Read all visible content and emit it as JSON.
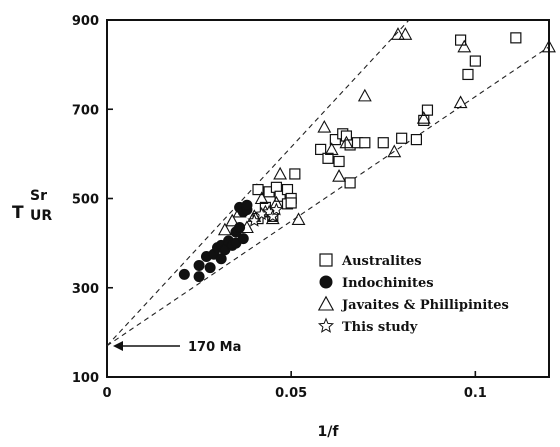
{
  "chart_data": {
    "type": "scatter",
    "title": "",
    "xlabel": "1/f",
    "ylabel": {
      "base": "T",
      "sup": "Sr",
      "sub": "UR"
    },
    "xlim": [
      0,
      0.12
    ],
    "ylim": [
      100,
      900
    ],
    "xticks": [
      0,
      0.05,
      0.1
    ],
    "xtick_labels": [
      "0",
      "0.05",
      "0.1"
    ],
    "yticks": [
      100,
      300,
      500,
      700,
      900
    ],
    "ytick_labels": [
      "100",
      "300",
      "500",
      "700",
      "900"
    ],
    "grid": false,
    "legend_position": "center-right",
    "annotation": {
      "text": "170 Ma",
      "x": 0,
      "y": 170
    },
    "reference_lines": [
      {
        "x": [
          0,
          0.082
        ],
        "y": [
          170,
          900
        ],
        "style": "dashed"
      },
      {
        "x": [
          0,
          0.12
        ],
        "y": [
          170,
          840
        ],
        "style": "dashed"
      }
    ],
    "series": [
      {
        "name": "Australites",
        "marker": "square",
        "points": [
          [
            0.041,
            520
          ],
          [
            0.044,
            515
          ],
          [
            0.046,
            525
          ],
          [
            0.047,
            505
          ],
          [
            0.049,
            520
          ],
          [
            0.05,
            500
          ],
          [
            0.051,
            555
          ],
          [
            0.043,
            480
          ],
          [
            0.045,
            460
          ],
          [
            0.041,
            455
          ],
          [
            0.049,
            488
          ],
          [
            0.05,
            490
          ],
          [
            0.058,
            610
          ],
          [
            0.06,
            590
          ],
          [
            0.062,
            632
          ],
          [
            0.063,
            583
          ],
          [
            0.064,
            645
          ],
          [
            0.065,
            640
          ],
          [
            0.066,
            620
          ],
          [
            0.066,
            535
          ],
          [
            0.068,
            625
          ],
          [
            0.07,
            625
          ],
          [
            0.075,
            625
          ],
          [
            0.08,
            635
          ],
          [
            0.084,
            632
          ],
          [
            0.086,
            675
          ],
          [
            0.087,
            698
          ],
          [
            0.096,
            855
          ],
          [
            0.098,
            778
          ],
          [
            0.1,
            808
          ],
          [
            0.111,
            860
          ]
        ]
      },
      {
        "name": "Indochinites",
        "marker": "circle-filled",
        "points": [
          [
            0.021,
            330
          ],
          [
            0.025,
            325
          ],
          [
            0.025,
            350
          ],
          [
            0.027,
            370
          ],
          [
            0.028,
            345
          ],
          [
            0.029,
            375
          ],
          [
            0.03,
            390
          ],
          [
            0.031,
            365
          ],
          [
            0.031,
            395
          ],
          [
            0.032,
            385
          ],
          [
            0.033,
            405
          ],
          [
            0.034,
            395
          ],
          [
            0.035,
            400
          ],
          [
            0.035,
            425
          ],
          [
            0.036,
            435
          ],
          [
            0.036,
            480
          ],
          [
            0.037,
            470
          ],
          [
            0.038,
            475
          ],
          [
            0.038,
            485
          ],
          [
            0.037,
            410
          ]
        ]
      },
      {
        "name": "Javaites & Phillipinites",
        "marker": "triangle",
        "points": [
          [
            0.032,
            430
          ],
          [
            0.034,
            450
          ],
          [
            0.036,
            470
          ],
          [
            0.038,
            435
          ],
          [
            0.04,
            460
          ],
          [
            0.042,
            500
          ],
          [
            0.043,
            470
          ],
          [
            0.045,
            455
          ],
          [
            0.046,
            490
          ],
          [
            0.047,
            555
          ],
          [
            0.052,
            453
          ],
          [
            0.059,
            660
          ],
          [
            0.061,
            610
          ],
          [
            0.063,
            550
          ],
          [
            0.065,
            625
          ],
          [
            0.07,
            730
          ],
          [
            0.078,
            605
          ],
          [
            0.079,
            868
          ],
          [
            0.081,
            868
          ],
          [
            0.086,
            680
          ],
          [
            0.096,
            715
          ],
          [
            0.097,
            840
          ],
          [
            0.12,
            840
          ]
        ]
      },
      {
        "name": "This study",
        "marker": "star",
        "points": [
          [
            0.04,
            450
          ],
          [
            0.042,
            465
          ],
          [
            0.044,
            470
          ],
          [
            0.045,
            460
          ],
          [
            0.046,
            475
          ]
        ]
      }
    ]
  }
}
